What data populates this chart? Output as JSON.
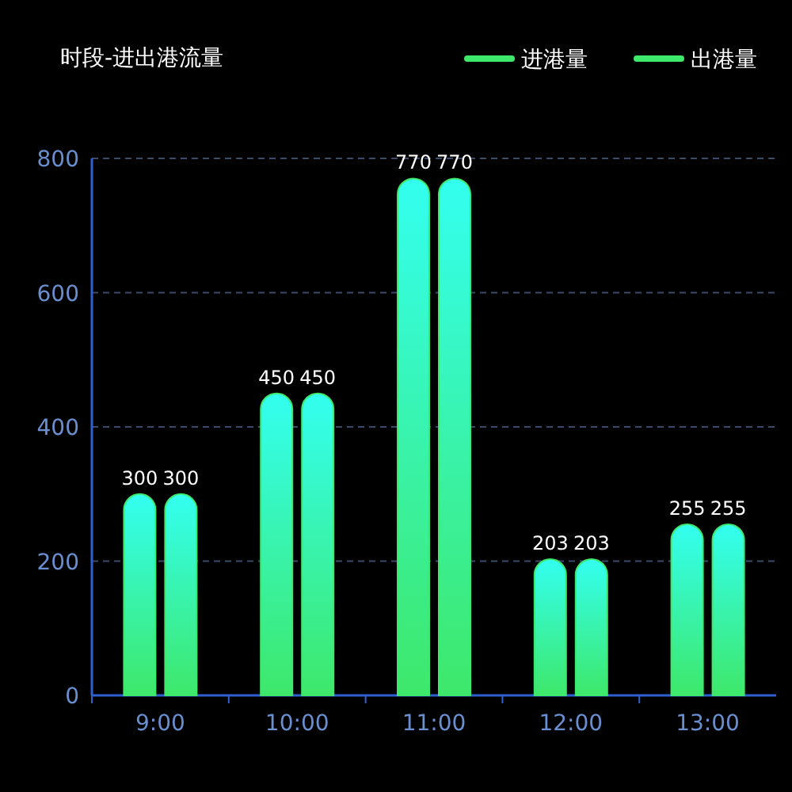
{
  "chart_data": {
    "type": "bar",
    "title": "时段-进出港流量",
    "categories": [
      "9:00",
      "10:00",
      "11:00",
      "12:00",
      "13:00"
    ],
    "series": [
      {
        "name": "进港量",
        "color": "#3ee86a",
        "values": [
          300,
          450,
          770,
          203,
          255
        ]
      },
      {
        "name": "出港量",
        "color": "#3ee86a",
        "values": [
          300,
          450,
          770,
          203,
          255
        ]
      }
    ],
    "ylim": [
      0,
      800
    ],
    "yticks": [
      0,
      200,
      400,
      600,
      800
    ],
    "grid": "y",
    "legend": "top right",
    "data_labels": true
  }
}
